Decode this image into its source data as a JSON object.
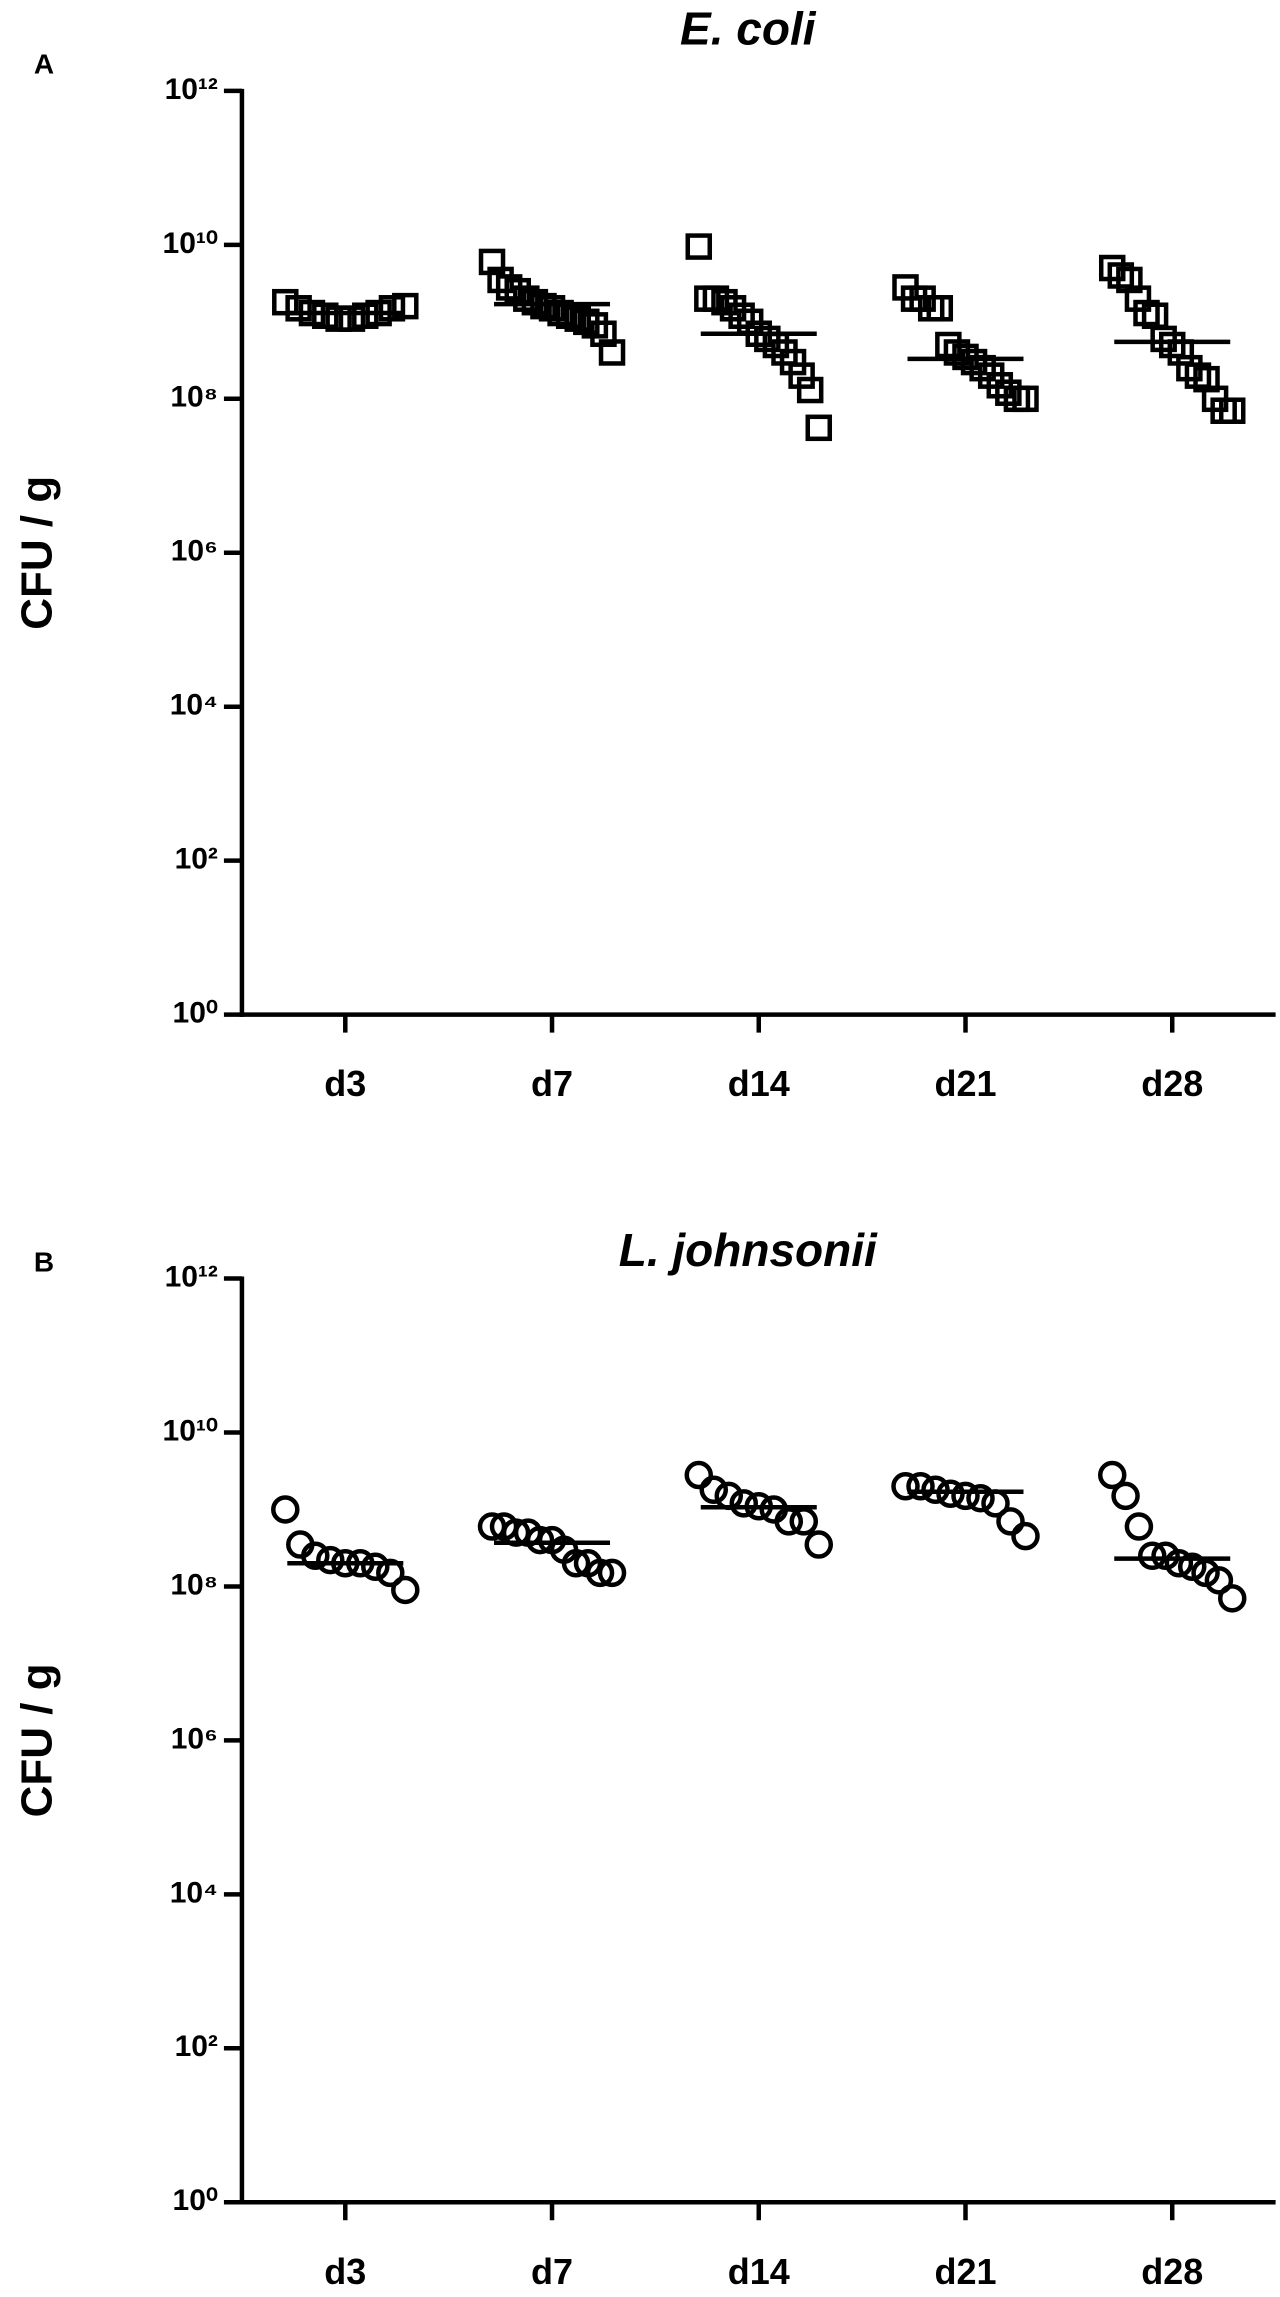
{
  "chart_data": [
    {
      "type": "dot",
      "panel_label": "A",
      "title": "E. coli",
      "y_label": "CFU / g",
      "marker": "square",
      "log_y": true,
      "categories": [
        "d3",
        "d7",
        "d14",
        "d21",
        "d28"
      ],
      "values": [
        [
          1800000000,
          1500000000,
          1300000000,
          1200000000,
          1100000000,
          1100000000,
          1200000000,
          1300000000,
          1500000000,
          1600000000
        ],
        [
          6000000000,
          3500000000,
          2800000000,
          2500000000,
          2000000000,
          1800000000,
          1600000000,
          1500000000,
          1300000000,
          1200000000,
          1100000000,
          1000000000,
          900000000,
          700000000,
          400000000
        ],
        [
          9500000000,
          2000000000,
          2000000000,
          1800000000,
          1500000000,
          1200000000,
          1000000000,
          700000000,
          600000000,
          500000000,
          400000000,
          300000000,
          200000000,
          130000000,
          42000000
        ],
        [
          2800000000,
          2000000000,
          2000000000,
          1500000000,
          1500000000,
          500000000,
          400000000,
          350000000,
          300000000,
          250000000,
          200000000,
          150000000,
          120000000,
          100000000,
          100000000
        ],
        [
          5000000000,
          4000000000,
          3500000000,
          2000000000,
          1300000000,
          1200000000,
          600000000,
          500000000,
          400000000,
          250000000,
          200000000,
          180000000,
          100000000,
          70000000,
          70000000
        ]
      ],
      "medians": [
        1300000000,
        1700000000,
        700000000,
        330000000,
        550000000
      ],
      "ylim": [
        1,
        1000000000000.0
      ],
      "yticks": [
        {
          "value": 1,
          "label": "10⁰"
        },
        {
          "value": 100,
          "label": "10²"
        },
        {
          "value": 10000,
          "label": "10⁴"
        },
        {
          "value": 1000000,
          "label": "10⁶"
        },
        {
          "value": 100000000,
          "label": "10⁸"
        },
        {
          "value": 10000000000,
          "label": "10¹⁰"
        },
        {
          "value": 1000000000000.0,
          "label": "10¹²"
        }
      ]
    },
    {
      "type": "dot",
      "panel_label": "B",
      "title": "L. johnsonii",
      "y_label": "CFU / g",
      "marker": "circle",
      "log_y": true,
      "categories": [
        "d3",
        "d7",
        "d14",
        "d21",
        "d28"
      ],
      "values": [
        [
          1000000000,
          350000000,
          250000000,
          220000000,
          200000000,
          200000000,
          180000000,
          150000000,
          90000000
        ],
        [
          600000000,
          600000000,
          500000000,
          500000000,
          400000000,
          400000000,
          300000000,
          200000000,
          200000000,
          150000000,
          150000000
        ],
        [
          2800000000,
          1800000000,
          1500000000,
          1200000000,
          1100000000,
          1000000000,
          700000000,
          700000000,
          350000000
        ],
        [
          2000000000,
          2000000000,
          1800000000,
          1600000000,
          1500000000,
          1400000000,
          1200000000,
          700000000,
          450000000
        ],
        [
          2800000000,
          1500000000,
          600000000,
          250000000,
          250000000,
          200000000,
          180000000,
          150000000,
          120000000,
          70000000
        ]
      ],
      "medians": [
        200000000,
        370000000,
        1070000000,
        1700000000,
        230000000
      ],
      "ylim": [
        1,
        1000000000000.0
      ],
      "yticks": [
        {
          "value": 1,
          "label": "10⁰"
        },
        {
          "value": 100,
          "label": "10²"
        },
        {
          "value": 10000,
          "label": "10⁴"
        },
        {
          "value": 1000000,
          "label": "10⁶"
        },
        {
          "value": 100000000,
          "label": "10⁸"
        },
        {
          "value": 10000000000,
          "label": "10¹⁰"
        },
        {
          "value": 1000000000000.0,
          "label": "10¹²"
        }
      ]
    }
  ]
}
